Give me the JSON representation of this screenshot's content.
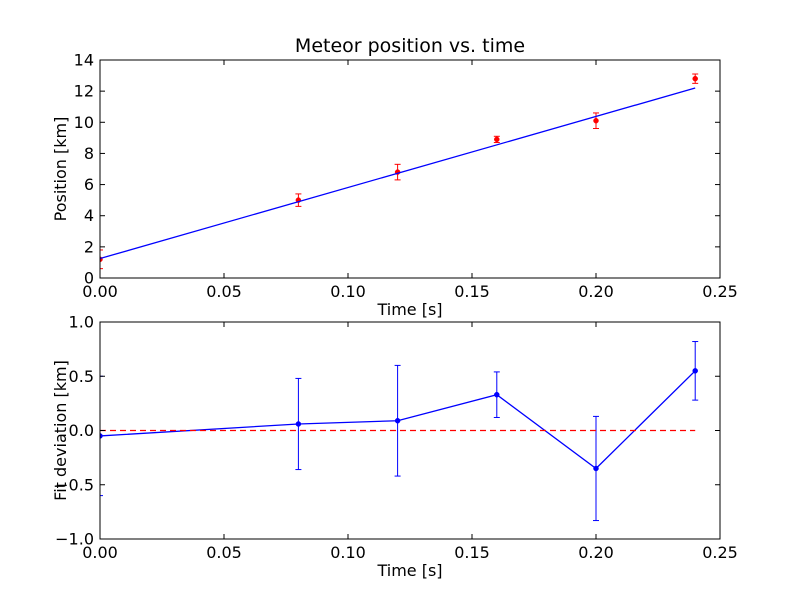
{
  "chart_data": [
    {
      "type": "scatter",
      "title": "Meteor position vs. time",
      "xlabel": "Time [s]",
      "ylabel": "Position [km]",
      "xlim": [
        0.0,
        0.25
      ],
      "ylim": [
        0,
        14
      ],
      "xticks": [
        "0.00",
        "0.05",
        "0.10",
        "0.15",
        "0.20",
        "0.25"
      ],
      "yticks": [
        "0",
        "2",
        "4",
        "6",
        "8",
        "10",
        "12",
        "14"
      ],
      "grid": false,
      "series": [
        {
          "kind": "errorbar",
          "color": "#ff0000",
          "x": [
            0.0,
            0.08,
            0.12,
            0.16,
            0.2,
            0.24
          ],
          "y": [
            1.2,
            5.0,
            6.8,
            8.9,
            10.1,
            12.8
          ],
          "yerr": [
            0.6,
            0.4,
            0.5,
            0.2,
            0.5,
            0.3
          ]
        },
        {
          "kind": "fit-line",
          "color": "#0000ff",
          "x": [
            0.0,
            0.24
          ],
          "y": [
            1.25,
            12.2
          ]
        }
      ]
    },
    {
      "type": "line",
      "title": "",
      "xlabel": "Time [s]",
      "ylabel": "Fit deviation [km]",
      "xlim": [
        0.0,
        0.25
      ],
      "ylim": [
        -1.0,
        1.0
      ],
      "xticks": [
        "0.00",
        "0.05",
        "0.10",
        "0.15",
        "0.20",
        "0.25"
      ],
      "yticks": [
        "−1.0",
        "−0.5",
        "0.0",
        "0.5",
        "1.0"
      ],
      "grid": false,
      "series": [
        {
          "kind": "errorbar-line",
          "color": "#0000ff",
          "x": [
            0.0,
            0.08,
            0.12,
            0.16,
            0.2,
            0.24
          ],
          "y": [
            -0.05,
            0.06,
            0.09,
            0.33,
            -0.35,
            0.55
          ],
          "yerr": [
            0.55,
            0.42,
            0.51,
            0.21,
            0.48,
            0.27
          ]
        },
        {
          "kind": "reference-line",
          "color": "#ff0000",
          "style": "dashed",
          "y": 0.0,
          "x": [
            0.0,
            0.24
          ]
        }
      ]
    }
  ]
}
